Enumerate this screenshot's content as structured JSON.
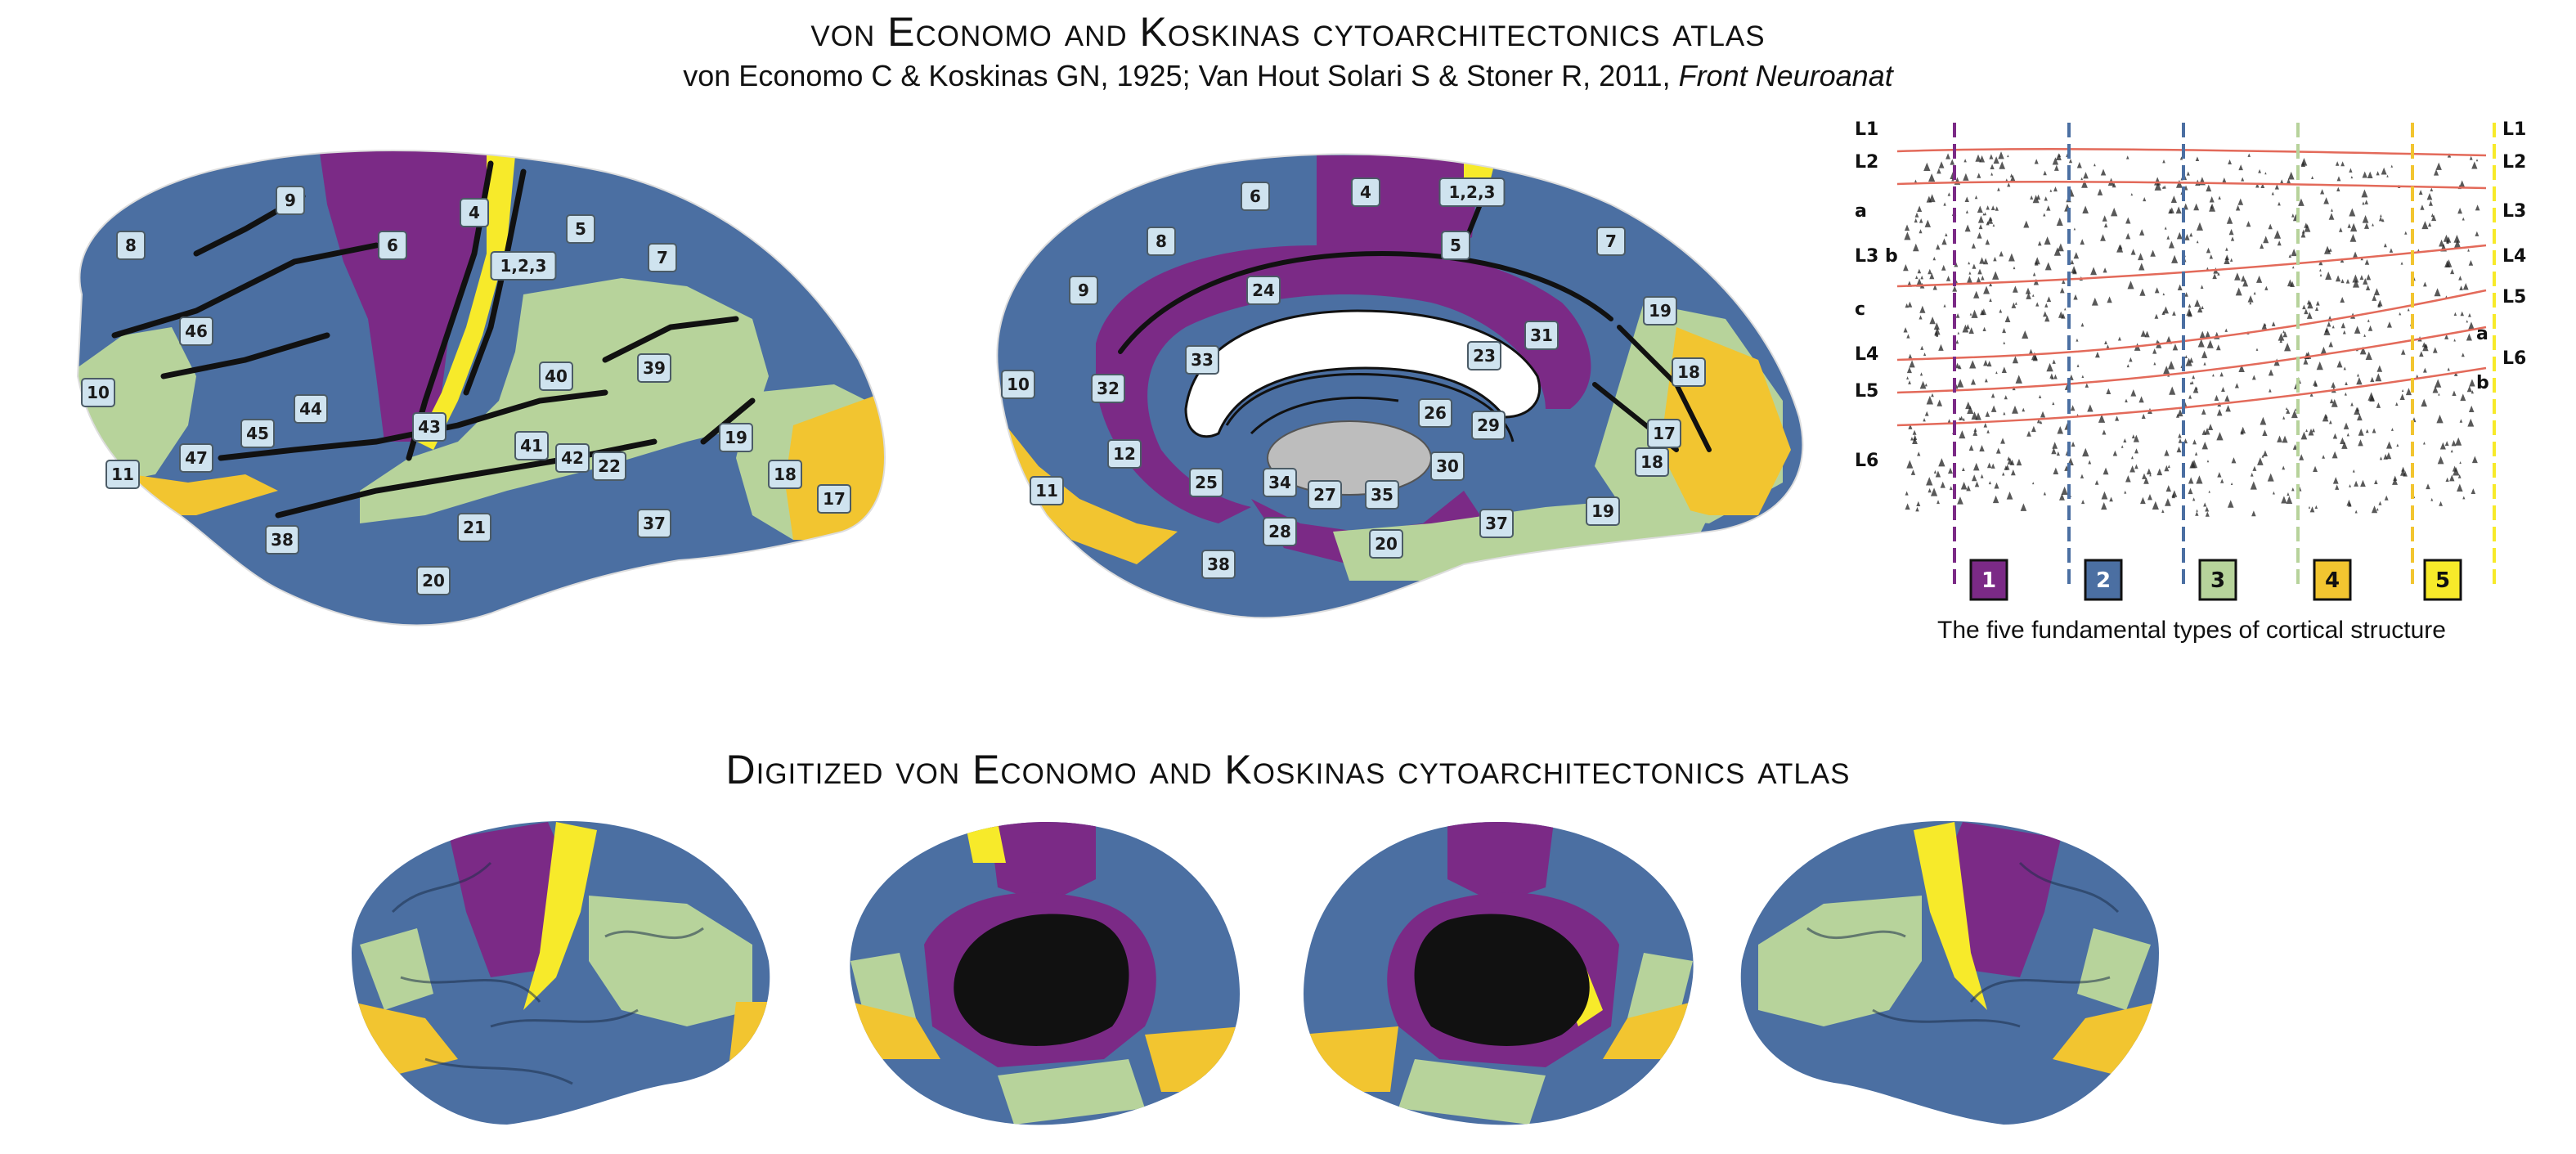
{
  "header": {
    "title": "von Economo and Koskinas cytoarchitectonics atlas",
    "subtitle_plain": "von Economo C & Koskinas GN, 1925; Van Hout Solari S & Stoner R, 2011, ",
    "subtitle_italic": "Front Neuroanat"
  },
  "colors": {
    "type1": "#7b2a86",
    "type2": "#4b6fa2",
    "type3": "#b7d39b",
    "type4": "#f2c530",
    "type5": "#f7ea2a",
    "sulcus": "#111111",
    "label_bg": "#cfe3ef"
  },
  "lateral_labels": [
    "9",
    "8",
    "4",
    "6",
    "5",
    "7",
    "1,2,3",
    "46",
    "10",
    "44",
    "45",
    "43",
    "40",
    "39",
    "41",
    "42",
    "22",
    "47",
    "11",
    "19",
    "18",
    "17",
    "38",
    "21",
    "37",
    "20"
  ],
  "medial_labels": [
    "6",
    "4",
    "1,2,3",
    "8",
    "5",
    "7",
    "9",
    "24",
    "31",
    "23",
    "33",
    "10",
    "32",
    "26",
    "29",
    "19",
    "18",
    "12",
    "25",
    "34",
    "27",
    "35",
    "30",
    "17",
    "28",
    "20",
    "37",
    "19",
    "18",
    "11",
    "38"
  ],
  "layers": {
    "left": [
      "L1",
      "L2",
      "a",
      "L3 b",
      "c",
      "L4",
      "L5",
      "L6"
    ],
    "right": [
      "L1",
      "L2",
      "L3",
      "L4",
      "L5",
      "a",
      "L6",
      "b"
    ]
  },
  "cortical_types": [
    "1",
    "2",
    "3",
    "4",
    "5"
  ],
  "cortical_types_caption": "The five fundamental types of cortical structure",
  "digitized": {
    "title": "Digitized von Economo and Koskinas cytoarchitectonics atlas",
    "views": [
      "left-lateral",
      "left-medial",
      "right-medial",
      "right-lateral"
    ]
  }
}
